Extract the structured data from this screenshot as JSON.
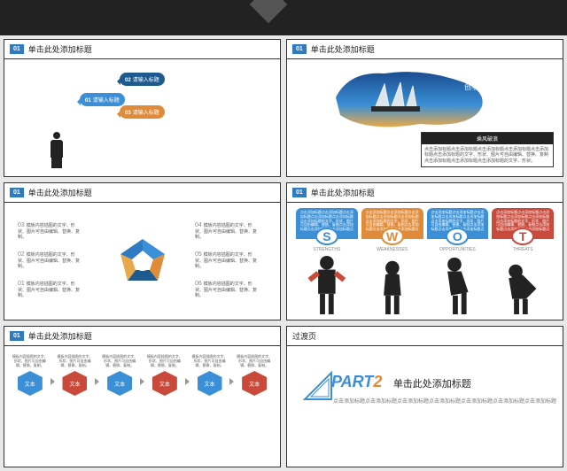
{
  "common": {
    "badge": "01",
    "title": "单击此处添加标题",
    "lorem_short": "模板内容插图的文字、形状、图片可自由编辑、替换、复制。",
    "lorem_long": "点击添加标题点击添加标题点击添加标题点击添加标题点击添加标题点击添加标题的文字、形状、图片可自由编辑、替换、复制点击添加标题点击添加标题点击添加标题点击添加标题。"
  },
  "colors": {
    "blue": "#3a8fd6",
    "darkblue": "#1e5a8e",
    "orange": "#e08b3a",
    "red": "#c94a3a",
    "dark": "#222222"
  },
  "s1": {
    "bubbles": [
      {
        "num": "01",
        "label": "请输入标题"
      },
      {
        "num": "02",
        "label": "请输入标题"
      },
      {
        "num": "03",
        "label": "请输入标题"
      }
    ]
  },
  "s2": {
    "innovation": "INNOVATION",
    "tagline": "创享",
    "caption_hdr": "乘风破浪",
    "caption_body": "点击添加标题点击添加标题点击添加标题点击添加标题点击添加标题点击添加标题的文字、形状、图片可自由编辑、替换、复制点击添加标题点击添加标题点击添加标题的文字、形状。"
  },
  "s3": {
    "items": [
      {
        "n": "01"
      },
      {
        "n": "02"
      },
      {
        "n": "03"
      },
      {
        "n": "04"
      },
      {
        "n": "05"
      },
      {
        "n": "06"
      }
    ]
  },
  "s4": {
    "swot": [
      {
        "letter": "S",
        "label": "STRENGTHS"
      },
      {
        "letter": "W",
        "label": "WEAKNESSES"
      },
      {
        "letter": "O",
        "label": "OPPORTUNITIES"
      },
      {
        "letter": "T",
        "label": "THREATS"
      }
    ]
  },
  "s5": {
    "hex": [
      {
        "label": "文本",
        "color": "#3a8fd6"
      },
      {
        "label": "文本",
        "color": "#c94a3a"
      },
      {
        "label": "文本",
        "color": "#3a8fd6"
      },
      {
        "label": "文本",
        "color": "#c94a3a"
      },
      {
        "label": "文本",
        "color": "#3a8fd6"
      },
      {
        "label": "文本",
        "color": "#c94a3a"
      }
    ]
  },
  "s6": {
    "hdr": "过渡页",
    "part": "PART",
    "num": "2",
    "title": "单击此处添加标题",
    "sub": "点击添加标题点击添加标题点击添加标题点击添加标题点击添加标题点击添加标题点击添加标题"
  }
}
